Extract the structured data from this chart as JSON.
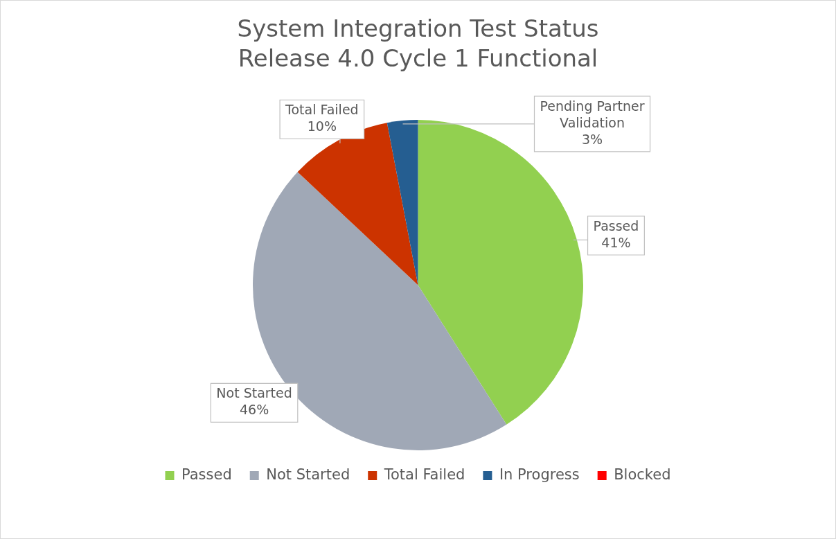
{
  "chart_data": {
    "type": "pie",
    "title": [
      "System Integration Test Status",
      "Release 4.0 Cycle 1 Functional"
    ],
    "categories": [
      "Passed",
      "Not Started",
      "Total Failed",
      "In Progress",
      "Blocked"
    ],
    "values": [
      41,
      46,
      10,
      3,
      0
    ],
    "colors": [
      "#92d050",
      "#a0a8b6",
      "#cc3300",
      "#255e91",
      "#ff0000"
    ],
    "value_labels": [
      "Passed\n41%",
      "Not Started\n46%",
      "Total Failed\n10%",
      "Pending Partner\nValidation\n3%",
      null
    ],
    "legend": "bottom"
  }
}
